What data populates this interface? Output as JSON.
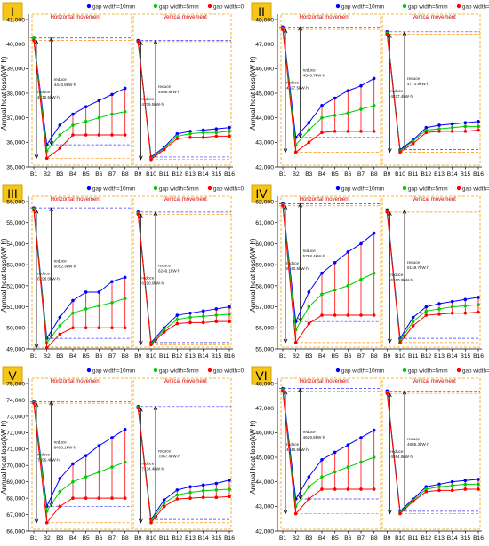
{
  "figure": {
    "ylabel": "Annual heat loss(kW·h)",
    "legend": [
      {
        "name": "gap width=10mm",
        "color": "#0000ff"
      },
      {
        "name": "gap width=5mm",
        "color": "#00cc00"
      },
      {
        "name": "gap width=0",
        "color": "#ff0000"
      }
    ],
    "region_labels": [
      "Horizontal movement",
      "Vertical movement"
    ]
  },
  "chart_data": [
    {
      "type": "line",
      "roman": "I",
      "ylabel": "Annual heat loss(kW·h)",
      "categories": [
        "B1",
        "B2",
        "B3",
        "B4",
        "B5",
        "B6",
        "B7",
        "B8",
        "B9",
        "B10",
        "B11",
        "B12",
        "B13",
        "B14",
        "B15",
        "B16"
      ],
      "ylim": [
        35000,
        41000
      ],
      "yticks": [
        "35,000",
        "36,000",
        "37,000",
        "38,000",
        "39,000",
        "40,000",
        "41,000"
      ],
      "series": [
        {
          "name": "gap width=10mm",
          "color": "#0000ff",
          "values": [
            40250,
            35900,
            36700,
            37150,
            37450,
            37700,
            37950,
            38200,
            40150,
            35400,
            35800,
            36350,
            36450,
            36500,
            36550,
            36600
          ]
        },
        {
          "name": "gap width=5mm",
          "color": "#00cc00",
          "values": [
            40250,
            35650,
            36300,
            36700,
            36850,
            37000,
            37150,
            37250,
            40100,
            35350,
            35750,
            36250,
            36350,
            36400,
            36400,
            36450
          ]
        },
        {
          "name": "gap width=0",
          "color": "#ff0000",
          "values": [
            40150,
            35350,
            35750,
            36300,
            36300,
            36300,
            36300,
            36300,
            40100,
            35300,
            35700,
            36150,
            36200,
            36200,
            36250,
            36250
          ]
        }
      ],
      "annotations": [
        {
          "text": "reduce",
          "near": "B2"
        },
        {
          "text": "4443.8kW·h",
          "near": "B2"
        },
        {
          "text": "reduce",
          "near": "B1"
        },
        {
          "text": "4715.5kW·h",
          "near": "B1"
        },
        {
          "text": "reduce",
          "near": "B10"
        },
        {
          "text": "4608.5kW·h",
          "near": "B10"
        },
        {
          "text": "reduce",
          "near": "B9"
        },
        {
          "text": "4709.5kW·h",
          "near": "B9"
        }
      ]
    },
    {
      "type": "line",
      "roman": "II",
      "ylabel": "Annual heat loss(kW·h)",
      "categories": [
        "B1",
        "B2",
        "B3",
        "B4",
        "B5",
        "B6",
        "B7",
        "B8",
        "B9",
        "B10",
        "B11",
        "B12",
        "B13",
        "B14",
        "B15",
        "B16"
      ],
      "ylim": [
        42000,
        48000
      ],
      "yticks": [
        "42,000",
        "43,000",
        "44,000",
        "45,000",
        "46,000",
        "47,000",
        "48,000"
      ],
      "series": [
        {
          "name": "gap width=10mm",
          "color": "#0000ff",
          "values": [
            47700,
            43200,
            43800,
            44500,
            44800,
            45100,
            45300,
            45600,
            47500,
            42700,
            43100,
            43600,
            43700,
            43750,
            43800,
            43850
          ]
        },
        {
          "name": "gap width=5mm",
          "color": "#00cc00",
          "values": [
            47650,
            42900,
            43500,
            44000,
            44100,
            44200,
            44350,
            44500,
            47450,
            42650,
            43050,
            43500,
            43550,
            43600,
            43650,
            43650
          ]
        },
        {
          "name": "gap width=0",
          "color": "#ff0000",
          "values": [
            47600,
            42600,
            43000,
            43400,
            43450,
            43450,
            43450,
            43450,
            47400,
            42600,
            42950,
            43400,
            43450,
            43450,
            43450,
            43500
          ]
        }
      ],
      "annotations": [
        {
          "text": "reduce",
          "near": "B2"
        },
        {
          "text": "4546.7kW·h",
          "near": "B2"
        },
        {
          "text": "reduce",
          "near": "B1"
        },
        {
          "text": "4627.5kW·h",
          "near": "B1"
        },
        {
          "text": "reduce",
          "near": "B10"
        },
        {
          "text": "4774.9kW·h",
          "near": "B10"
        },
        {
          "text": "reduce",
          "near": "B9"
        },
        {
          "text": "4827.4kW·h",
          "near": "B9"
        }
      ]
    },
    {
      "type": "line",
      "roman": "III",
      "ylabel": "Annual heat loss(kW·h)",
      "categories": [
        "B1",
        "B2",
        "B3",
        "B4",
        "B5",
        "B6",
        "B7",
        "B8",
        "B9",
        "B10",
        "B11",
        "B12",
        "B13",
        "B14",
        "B15",
        "B16"
      ],
      "ylim": [
        49000,
        56000
      ],
      "yticks": [
        "49,000",
        "50,000",
        "51,000",
        "52,000",
        "53,000",
        "54,000",
        "55,000",
        "56,000"
      ],
      "series": [
        {
          "name": "gap width=10mm",
          "color": "#0000ff",
          "values": [
            55700,
            49500,
            50500,
            51300,
            51700,
            51700,
            52200,
            52400,
            55500,
            49300,
            50000,
            50600,
            50700,
            50800,
            50900,
            51000
          ]
        },
        {
          "name": "gap width=5mm",
          "color": "#00cc00",
          "values": [
            55650,
            49300,
            50100,
            50700,
            50900,
            51050,
            51200,
            51400,
            55450,
            49250,
            49900,
            50400,
            50500,
            50550,
            50600,
            50650
          ]
        },
        {
          "name": "gap width=0",
          "color": "#ff0000",
          "values": [
            55600,
            49050,
            49700,
            50000,
            50000,
            50000,
            50000,
            50000,
            55400,
            49200,
            49800,
            50200,
            50250,
            50250,
            50300,
            50300
          ]
        }
      ],
      "annotations": [
        {
          "text": "reduce",
          "near": "B2"
        },
        {
          "text": "6052.3kW·h",
          "near": "B2"
        },
        {
          "text": "reduce",
          "near": "B1"
        },
        {
          "text": "6198.0kW·h",
          "near": "B1"
        },
        {
          "text": "reduce",
          "near": "B10"
        },
        {
          "text": "6246.1kW·h",
          "near": "B10"
        },
        {
          "text": "reduce",
          "near": "B9"
        },
        {
          "text": "6190.0kW·h",
          "near": "B9"
        }
      ]
    },
    {
      "type": "line",
      "roman": "IV",
      "ylabel": "Annual heat loss(kW·h)",
      "categories": [
        "B1",
        "B2",
        "B3",
        "B4",
        "B5",
        "B6",
        "B7",
        "B8",
        "B9",
        "B10",
        "B11",
        "B12",
        "B13",
        "B14",
        "B15",
        "B16"
      ],
      "ylim": [
        55000,
        62000
      ],
      "yticks": [
        "55,000",
        "56,000",
        "57,000",
        "58,000",
        "59,000",
        "60,000",
        "61,000",
        "62,000"
      ],
      "series": [
        {
          "name": "gap width=10mm",
          "color": "#0000ff",
          "values": [
            61900,
            56300,
            57700,
            58600,
            59100,
            59600,
            60000,
            60500,
            61600,
            55500,
            56500,
            57000,
            57150,
            57250,
            57350,
            57450
          ]
        },
        {
          "name": "gap width=5mm",
          "color": "#00cc00",
          "values": [
            61850,
            55900,
            57000,
            57600,
            57800,
            58000,
            58300,
            58600,
            61550,
            55400,
            56300,
            56800,
            56900,
            57000,
            57050,
            57100
          ]
        },
        {
          "name": "gap width=0",
          "color": "#ff0000",
          "values": [
            61800,
            55300,
            56200,
            56600,
            56600,
            56600,
            56600,
            56600,
            61500,
            55300,
            56100,
            56600,
            56650,
            56700,
            56700,
            56750
          ]
        }
      ],
      "annotations": [
        {
          "text": "reduce",
          "near": "B2"
        },
        {
          "text": "5768.4kW·h",
          "near": "B2"
        },
        {
          "text": "reduce",
          "near": "B1"
        },
        {
          "text": "6240.5kW·h",
          "near": "B1"
        },
        {
          "text": "reduce",
          "near": "B10"
        },
        {
          "text": "6149.7kW·h",
          "near": "B10"
        },
        {
          "text": "reduce",
          "near": "B9"
        },
        {
          "text": "6260.9kW·h",
          "near": "B9"
        }
      ]
    },
    {
      "type": "line",
      "roman": "V",
      "ylabel": "Annual heat loss(kW·h)",
      "categories": [
        "B1",
        "B2",
        "B3",
        "B4",
        "B5",
        "B6",
        "B7",
        "B8",
        "B9",
        "B10",
        "B11",
        "B12",
        "B13",
        "B14",
        "B15",
        "B16"
      ],
      "ylim": [
        66000,
        75000
      ],
      "yticks": [
        "66,000",
        "67,000",
        "68,000",
        "69,000",
        "70,000",
        "71,000",
        "72,000",
        "73,000",
        "74,000",
        "75,000"
      ],
      "series": [
        {
          "name": "gap width=10mm",
          "color": "#0000ff",
          "values": [
            73900,
            67500,
            69200,
            70100,
            70600,
            71200,
            71700,
            72200,
            73600,
            66700,
            67900,
            68500,
            68700,
            68800,
            68900,
            69100
          ]
        },
        {
          "name": "gap width=5mm",
          "color": "#00cc00",
          "values": [
            73850,
            67200,
            68400,
            69000,
            69300,
            69600,
            69900,
            70200,
            73550,
            66600,
            67700,
            68200,
            68350,
            68450,
            68500,
            68550
          ]
        },
        {
          "name": "gap width=0",
          "color": "#ff0000",
          "values": [
            73800,
            66500,
            67500,
            68000,
            68000,
            68000,
            68000,
            68000,
            73500,
            66500,
            67500,
            67950,
            68000,
            68050,
            68050,
            68100
          ]
        }
      ],
      "annotations": [
        {
          "text": "reduce",
          "near": "B2"
        },
        {
          "text": "6456.1kW·h",
          "near": "B2"
        },
        {
          "text": "reduce",
          "near": "B1"
        },
        {
          "text": "7396.4kW·h",
          "near": "B1"
        },
        {
          "text": "reduce",
          "near": "B10"
        },
        {
          "text": "7067.4kW·h",
          "near": "B10"
        },
        {
          "text": "reduce",
          "near": "B9"
        },
        {
          "text": "7134.4kW·h",
          "near": "B9"
        }
      ]
    },
    {
      "type": "line",
      "roman": "VI",
      "ylabel": "Annual heat loss(kW·h)",
      "categories": [
        "B1",
        "B2",
        "B3",
        "B4",
        "B5",
        "B6",
        "B7",
        "B8",
        "B9",
        "B10",
        "B11",
        "B12",
        "B13",
        "B14",
        "B15",
        "B16"
      ],
      "ylim": [
        42000,
        48000
      ],
      "yticks": [
        "42,000",
        "43,000",
        "44,000",
        "45,000",
        "46,000",
        "47,000",
        "48,000"
      ],
      "series": [
        {
          "name": "gap width=10mm",
          "color": "#0000ff",
          "values": [
            47800,
            43300,
            44200,
            44900,
            45200,
            45500,
            45800,
            46100,
            47700,
            42800,
            43300,
            43800,
            43900,
            44000,
            44050,
            44100
          ]
        },
        {
          "name": "gap width=5mm",
          "color": "#00cc00",
          "values": [
            47750,
            43000,
            43800,
            44200,
            44400,
            44600,
            44800,
            45000,
            47650,
            42750,
            43250,
            43700,
            43800,
            43850,
            43900,
            43900
          ]
        },
        {
          "name": "gap width=0",
          "color": "#ff0000",
          "values": [
            47700,
            42700,
            43300,
            43700,
            43700,
            43700,
            43700,
            43700,
            47600,
            42700,
            43200,
            43600,
            43650,
            43650,
            43700,
            43700
          ]
        }
      ],
      "annotations": [
        {
          "text": "reduce",
          "near": "B2"
        },
        {
          "text": "4629.8kW·h",
          "near": "B2"
        },
        {
          "text": "reduce",
          "near": "B1"
        },
        {
          "text": "4946.6kW·h",
          "near": "B1"
        },
        {
          "text": "reduce",
          "near": "B10"
        },
        {
          "text": "4885.3kW·h",
          "near": "B10"
        },
        {
          "text": "reduce",
          "near": "B9"
        },
        {
          "text": "4984.6kW·h",
          "near": "B9"
        }
      ]
    }
  ]
}
